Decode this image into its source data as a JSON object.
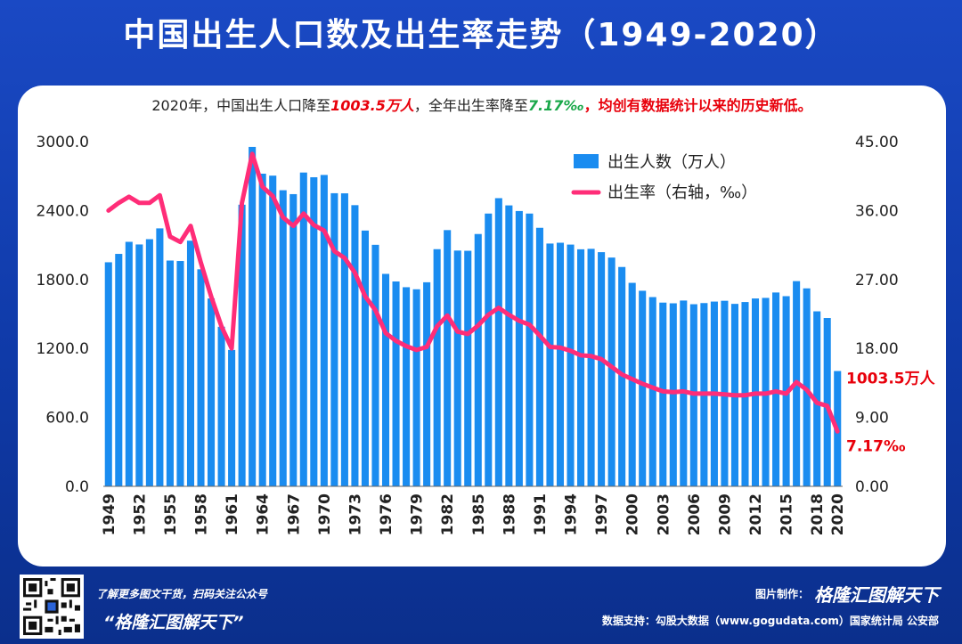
{
  "header": {
    "title": "中国出生人口数及出生率走势（1949-2020）"
  },
  "subtitle": {
    "prefix": "2020年，中国出生人口降至",
    "births_value": "1003.5万人",
    "mid": "，全年出生率降至",
    "rate_value": "7.17‰",
    "suffix": "，均创有数据统计以来的历史新低。"
  },
  "annotations": {
    "last_births": "1003.5万人",
    "last_rate": "7.17‰"
  },
  "colors": {
    "bar": "#1a8cf0",
    "line": "#ff2d78",
    "red_text": "#e8000b",
    "green_text": "#1aa84a",
    "background": "#1346b8"
  },
  "chart_data": {
    "type": "bar",
    "title": "",
    "xlabel": "",
    "ylabel": "",
    "y_left": {
      "range": [
        0,
        3000
      ],
      "ticks": [
        "0.0",
        "600.0",
        "1200.0",
        "1800.0",
        "2400.0",
        "3000.0"
      ]
    },
    "y_right": {
      "range": [
        0,
        45
      ],
      "ticks": [
        "0.00",
        "9.00",
        "18.00",
        "27.00",
        "36.00",
        "45.00"
      ]
    },
    "x_tick_labels": [
      "1949",
      "1952",
      "1955",
      "1958",
      "1961",
      "1964",
      "1967",
      "1970",
      "1973",
      "1976",
      "1979",
      "1982",
      "1985",
      "1988",
      "1991",
      "1994",
      "1997",
      "2000",
      "2003",
      "2006",
      "2009",
      "2012",
      "2015",
      "2018",
      "2020"
    ],
    "legend": {
      "position": "top-center",
      "bar_label": "出生人数（万人）",
      "line_label": "出生率（右轴，‰）"
    },
    "grid": false,
    "years": [
      1949,
      1950,
      1951,
      1952,
      1953,
      1954,
      1955,
      1956,
      1957,
      1958,
      1959,
      1960,
      1961,
      1962,
      1963,
      1964,
      1965,
      1966,
      1967,
      1968,
      1969,
      1970,
      1971,
      1972,
      1973,
      1974,
      1975,
      1976,
      1977,
      1978,
      1979,
      1980,
      1981,
      1982,
      1983,
      1984,
      1985,
      1986,
      1987,
      1988,
      1989,
      1990,
      1991,
      1992,
      1993,
      1994,
      1995,
      1996,
      1997,
      1998,
      1999,
      2000,
      2001,
      2002,
      2003,
      2004,
      2005,
      2006,
      2007,
      2008,
      2009,
      2010,
      2011,
      2012,
      2013,
      2014,
      2015,
      2016,
      2017,
      2018,
      2019,
      2020
    ],
    "series": [
      {
        "name": "出生人数（万人）",
        "axis": "left",
        "type": "bar",
        "values": [
          1950,
          2023,
          2128,
          2105,
          2151,
          2245,
          1965,
          1961,
          2138,
          1889,
          1635,
          1389,
          1187,
          2451,
          2954,
          2721,
          2704,
          2577,
          2543,
          2731,
          2690,
          2710,
          2551,
          2550,
          2447,
          2226,
          2102,
          1849,
          1783,
          1733,
          1715,
          1776,
          2064,
          2230,
          2052,
          2050,
          2196,
          2374,
          2508,
          2445,
          2396,
          2374,
          2250,
          2113,
          2120,
          2104,
          2063,
          2067,
          2038,
          1991,
          1909,
          1771,
          1702,
          1647,
          1599,
          1593,
          1617,
          1585,
          1595,
          1608,
          1615,
          1588,
          1604,
          1635,
          1640,
          1687,
          1655,
          1786,
          1723,
          1523,
          1465,
          1003.5
        ]
      },
      {
        "name": "出生率（右轴，‰）",
        "axis": "right",
        "type": "line",
        "values": [
          36.0,
          37.0,
          37.8,
          37.0,
          37.0,
          38.0,
          32.6,
          31.9,
          34.0,
          29.2,
          24.8,
          20.9,
          18.0,
          37.0,
          43.4,
          39.1,
          37.9,
          35.1,
          34.0,
          35.6,
          34.1,
          33.4,
          30.7,
          29.8,
          27.9,
          24.8,
          23.0,
          20.0,
          19.0,
          18.3,
          17.8,
          18.2,
          20.9,
          22.3,
          20.2,
          19.9,
          21.0,
          22.4,
          23.3,
          22.4,
          21.6,
          21.1,
          19.7,
          18.2,
          18.1,
          17.7,
          17.1,
          17.0,
          16.6,
          15.6,
          14.6,
          14.0,
          13.4,
          12.9,
          12.4,
          12.3,
          12.4,
          12.1,
          12.1,
          12.1,
          12.0,
          11.9,
          11.9,
          12.1,
          12.1,
          12.4,
          12.1,
          13.6,
          12.6,
          10.9,
          10.5,
          7.17
        ]
      }
    ]
  },
  "footer": {
    "promo_line": "了解更多图文干货，扫码关注公众号",
    "brand_quote": "“格隆汇图解天下”",
    "maker_label": "图片制作：",
    "maker_brand": "格隆汇图解天下",
    "source_line": "数据支持：勾股大数据（www.gogudata.com）国家统计局 公安部"
  }
}
